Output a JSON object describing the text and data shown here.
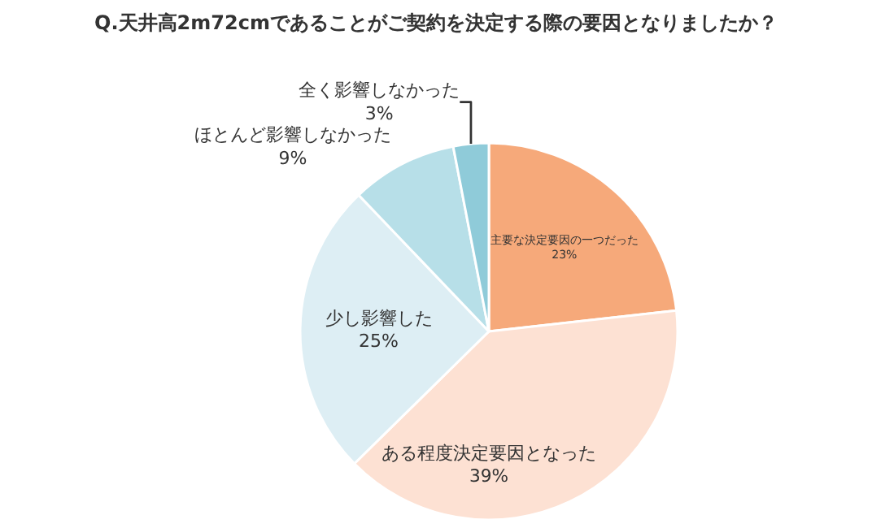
{
  "chart_data": {
    "type": "pie",
    "title": "Q.天井高2m72cmであることがご契約を決定する際の要因となりましたか？",
    "categories": [
      "主要な決定要因の一つだった",
      "ある程度決定要因となった",
      "少し影響した",
      "ほとんど影響しなかった",
      "全く影響しなかった"
    ],
    "values": [
      23,
      39,
      25,
      9,
      3
    ],
    "value_labels": [
      "23%",
      "39%",
      "25%",
      "9%",
      "3%"
    ],
    "colors": [
      "#f6a97a",
      "#fde1d3",
      "#ddeef4",
      "#b7dfe8",
      "#8fcbd9"
    ],
    "legend": false
  }
}
